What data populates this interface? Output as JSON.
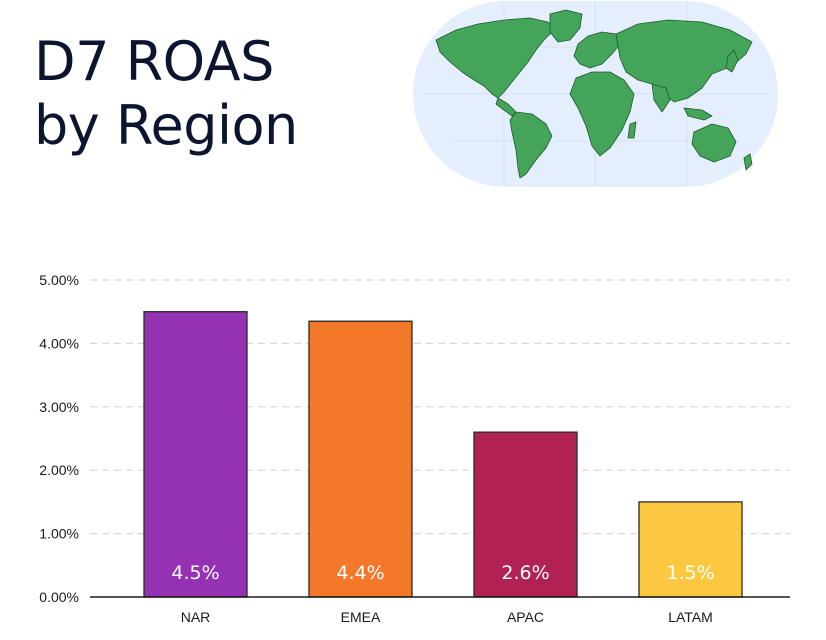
{
  "title_line1": "D7 ROAS",
  "title_line2": "by Region",
  "colors": {
    "title": "#0c1530",
    "map_ocean": "#e4eefc",
    "map_land": "#44a55a",
    "NAR": "#9532b4",
    "EMEA": "#f3782a",
    "APAC": "#b22154",
    "LATAM": "#fcc83f"
  },
  "icons": {
    "map": "world-map-icon"
  },
  "chart_data": {
    "type": "bar",
    "title": "D7 ROAS by Region",
    "categories": [
      "NAR",
      "EMEA",
      "APAC",
      "LATAM"
    ],
    "values": [
      4.5,
      4.35,
      2.6,
      1.5
    ],
    "data_labels": [
      "4.5%",
      "4.4%",
      "2.6%",
      "1.5%"
    ],
    "ylim": [
      0,
      5
    ],
    "yticks": [
      0,
      1,
      2,
      3,
      4,
      5
    ],
    "ytick_labels": [
      "0.00%",
      "1.00%",
      "2.00%",
      "3.00%",
      "4.00%",
      "5.00%"
    ],
    "xlabel": "",
    "ylabel": "",
    "grid": true,
    "legend": "none"
  }
}
